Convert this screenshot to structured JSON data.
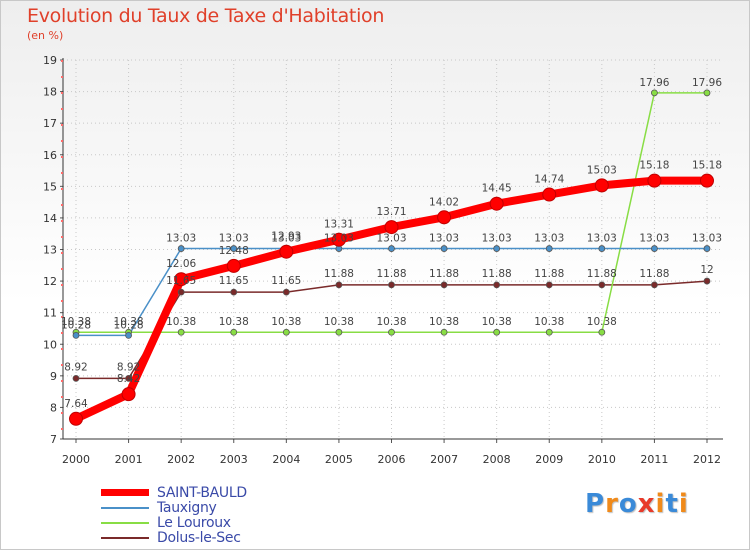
{
  "chart_data": {
    "type": "line",
    "title": "Evolution du Taux de Taxe d'Habitation",
    "ylabel": "(en %)",
    "xlabel": "",
    "ylim": [
      7,
      19
    ],
    "yticks": [
      "7",
      "8",
      "9",
      "10",
      "11",
      "12",
      "13",
      "14",
      "15",
      "16",
      "17",
      "18",
      "19"
    ],
    "categories": [
      "2000",
      "2001",
      "2002",
      "2003",
      "2004",
      "2005",
      "2006",
      "2007",
      "2008",
      "2009",
      "2010",
      "2011",
      "2012"
    ],
    "series": [
      {
        "name": "SAINT-BAULD",
        "color": "#ff0000",
        "values": [
          7.64,
          8.42,
          12.06,
          12.48,
          12.93,
          13.31,
          13.71,
          14.02,
          14.45,
          14.74,
          15.03,
          15.18,
          15.18
        ],
        "labels": [
          "7.64",
          "8.42",
          "12.06",
          "12.48",
          "12.93",
          "13.31",
          "13.71",
          "14.02",
          "14.45",
          "14.74",
          "15.03",
          "15.18",
          "15.18"
        ]
      },
      {
        "name": "Tauxigny",
        "color": "#4a90c8",
        "values": [
          10.28,
          10.28,
          13.03,
          13.03,
          13.03,
          13.03,
          13.03,
          13.03,
          13.03,
          13.03,
          13.03,
          13.03,
          13.03
        ],
        "labels": [
          "10.28",
          "10.28",
          "13.03",
          "13.03",
          "13.03",
          "13.03",
          "13.03",
          "13.03",
          "13.03",
          "13.03",
          "13.03",
          "13.03",
          "13.03"
        ]
      },
      {
        "name": "Le Louroux",
        "color": "#88dd44",
        "values": [
          10.38,
          10.38,
          10.38,
          10.38,
          10.38,
          10.38,
          10.38,
          10.38,
          10.38,
          10.38,
          10.38,
          17.96,
          17.96
        ],
        "labels": [
          "10.38",
          "10.38",
          "10.38",
          "10.38",
          "10.38",
          "10.38",
          "10.38",
          "10.38",
          "10.38",
          "10.38",
          "10.38",
          "17.96",
          "17.96"
        ]
      },
      {
        "name": "Dolus-le-Sec",
        "color": "#7a2a2a",
        "values": [
          8.92,
          8.92,
          11.65,
          11.65,
          11.65,
          11.88,
          11.88,
          11.88,
          11.88,
          11.88,
          11.88,
          11.88,
          12
        ],
        "labels": [
          "8.92",
          "8.92",
          "11.65",
          "11.65",
          "11.65",
          "11.88",
          "11.88",
          "11.88",
          "11.88",
          "11.88",
          "11.88",
          "11.88",
          "12"
        ]
      }
    ],
    "legend": [
      "SAINT-BAULD",
      "Tauxigny",
      "Le Louroux",
      "Dolus-le-Sec"
    ]
  },
  "logo": {
    "text": "Proxiti",
    "letters": [
      "P",
      "r",
      "o",
      "x",
      "i",
      "t",
      "i"
    ],
    "colors": [
      "#3a8ad8",
      "#f08a1a",
      "#3a8ad8",
      "#e83a2a",
      "#f08a1a",
      "#3a8ad8",
      "#f08a1a"
    ]
  }
}
